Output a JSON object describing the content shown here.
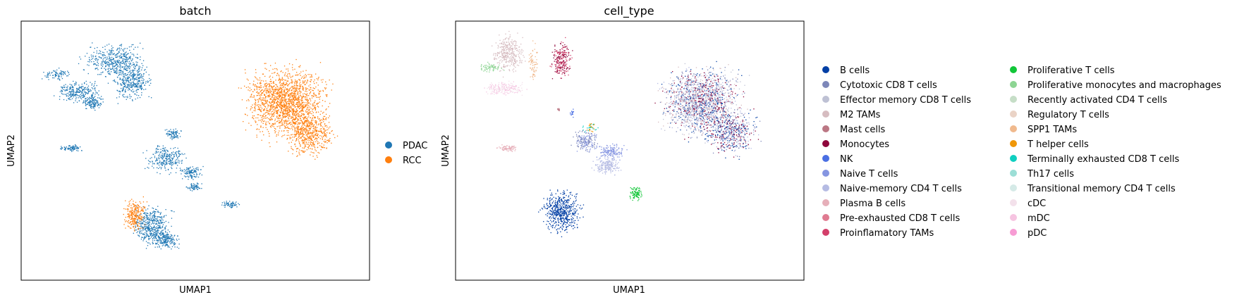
{
  "chart_data": [
    {
      "type": "scatter",
      "title": "batch",
      "xlabel": "UMAP1",
      "ylabel": "UMAP2",
      "grid": false,
      "ticks": false,
      "legend_placement": "right",
      "series": [
        {
          "name": "PDAC",
          "color": "#1f77b4"
        },
        {
          "name": "RCC",
          "color": "#ff7f0e"
        }
      ]
    },
    {
      "type": "scatter",
      "title": "cell_type",
      "xlabel": "UMAP1",
      "ylabel": "UMAP2",
      "grid": false,
      "ticks": false,
      "legend_placement": "right",
      "series": [
        {
          "name": "B cells",
          "color": "#023fa5"
        },
        {
          "name": "Cytotoxic CD8 T cells",
          "color": "#7d87b9"
        },
        {
          "name": "Effector memory CD8 T cells",
          "color": "#bec1d4"
        },
        {
          "name": "M2 TAMs",
          "color": "#d6bcc0"
        },
        {
          "name": "Mast cells",
          "color": "#bb7784"
        },
        {
          "name": "Monocytes",
          "color": "#8e063b"
        },
        {
          "name": "NK",
          "color": "#4a6fe3"
        },
        {
          "name": "Naive T cells",
          "color": "#8595e1"
        },
        {
          "name": "Naive-memory CD4 T cells",
          "color": "#b5bbe3"
        },
        {
          "name": "Plasma B cells",
          "color": "#e6afb9"
        },
        {
          "name": "Pre-exhausted CD8 T cells",
          "color": "#e07b91"
        },
        {
          "name": "Proinflamatory TAMs",
          "color": "#d33f6a"
        },
        {
          "name": "Proliferative T cells",
          "color": "#11c638"
        },
        {
          "name": "Proliferative monocytes and macrophages",
          "color": "#8dd593"
        },
        {
          "name": "Recently activated CD4 T cells",
          "color": "#c6dec7"
        },
        {
          "name": "Regulatory T cells",
          "color": "#ead3c6"
        },
        {
          "name": "SPP1 TAMs",
          "color": "#f0b98d"
        },
        {
          "name": "T helper cells",
          "color": "#ef9708"
        },
        {
          "name": "Terminally exhausted CD8 T cells",
          "color": "#0fcfc0"
        },
        {
          "name": "Th17 cells",
          "color": "#9cded6"
        },
        {
          "name": "Transitional memory CD4 T cells",
          "color": "#d5eae7"
        },
        {
          "name": "cDC",
          "color": "#f3e1eb"
        },
        {
          "name": "mDC",
          "color": "#f6c4e1"
        },
        {
          "name": "pDC",
          "color": "#f79cd4"
        }
      ]
    }
  ]
}
